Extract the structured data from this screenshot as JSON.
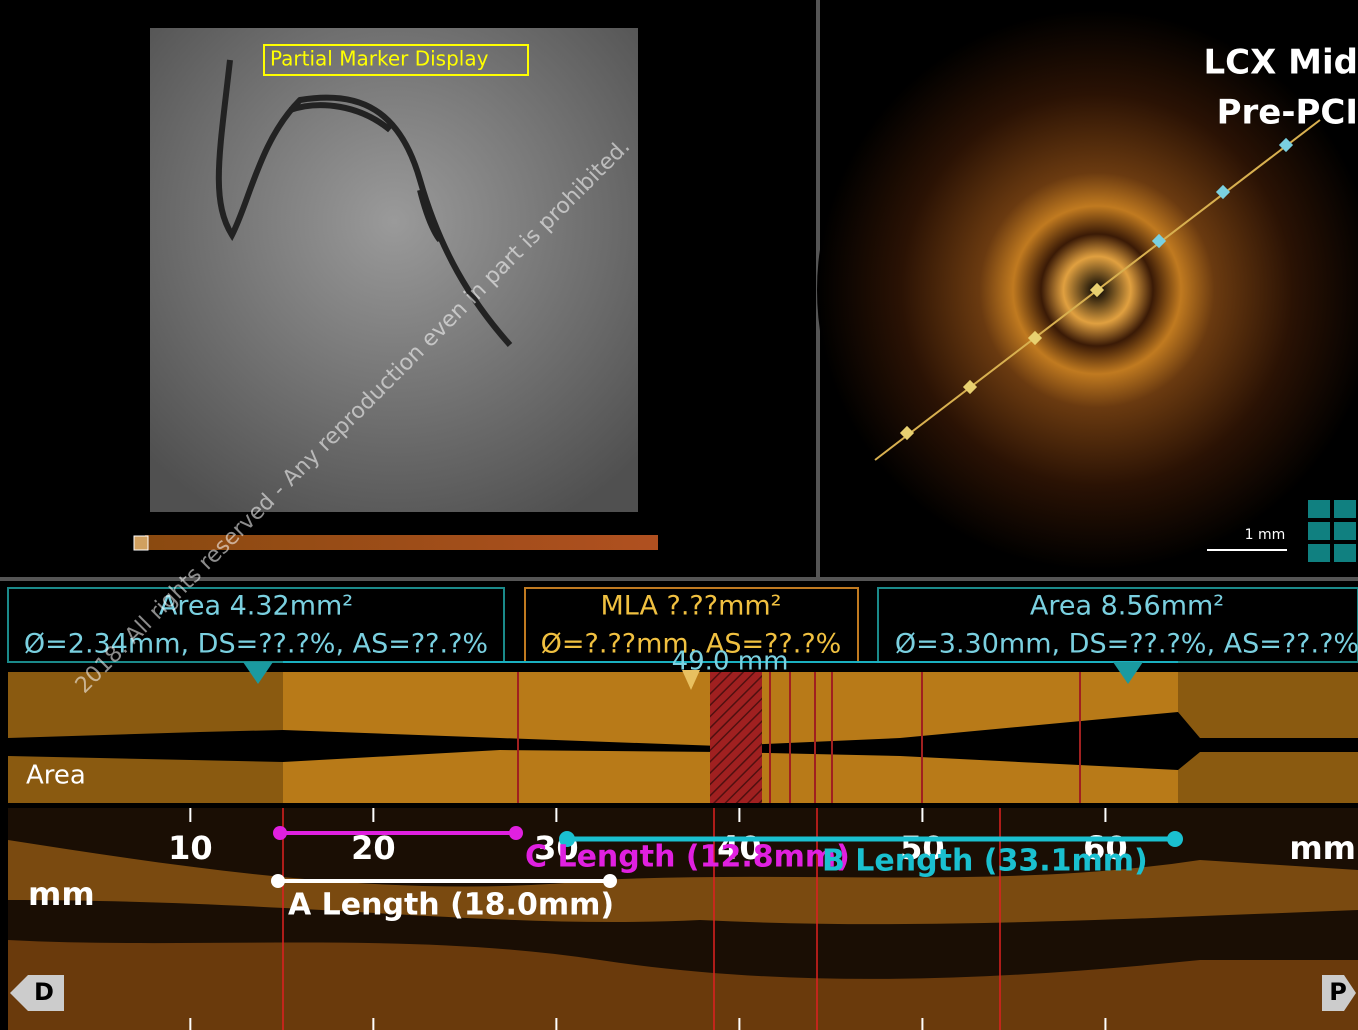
{
  "angiogram": {
    "overlay_label": "Partial Marker Display"
  },
  "oct": {
    "vessel": "LCX Mid",
    "stage": "Pre-PCI",
    "scale_bar": "1 mm"
  },
  "measurements": [
    {
      "area": "Area 4.32mm²",
      "detail": "Ø=2.34mm, DS=??.?%, AS=??.?%"
    },
    {
      "area": "MLA ?.??mm²",
      "detail": "Ø=?.??mm, AS=??.?%"
    },
    {
      "area": "Area 8.56mm²",
      "detail": "Ø=3.30mm, DS=??.?%, AS=??.?%"
    }
  ],
  "segment_length": "49.0 mm",
  "area_plot_label": "Area",
  "lmode": {
    "xlim": [
      -0.4,
      73.8
    ],
    "xticks": [
      10,
      20,
      30,
      40,
      50,
      60
    ],
    "units": [
      "mm",
      "mm"
    ],
    "lengths": [
      "A Length (18.0mm)",
      "C Length (12.8mm)",
      "B Length (33.1mm)"
    ],
    "ends": [
      "D",
      "P"
    ]
  },
  "watermark": "2018. All rights reserved - Any reproduction even in part is prohibited."
}
